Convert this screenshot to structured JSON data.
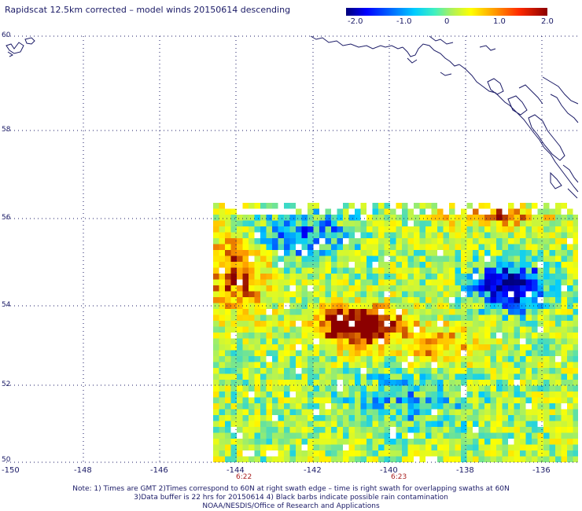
{
  "title": "Rapidscat 12.5km corrected – model winds 20150614 descending",
  "colorbar": {
    "ticks": [
      "-2.0",
      "-1.0",
      "0",
      "1.0",
      "2.0"
    ],
    "colors": [
      "#00007a",
      "#0000ff",
      "#00ccff",
      "#a8f060",
      "#ffff00",
      "#ff9900",
      "#8c0000"
    ]
  },
  "axes": {
    "lat_labels": [
      "60",
      "58",
      "56",
      "54",
      "52",
      "50"
    ],
    "lon_labels": [
      "-150",
      "-148",
      "-146",
      "-144",
      "-142",
      "-140",
      "-138",
      "-136"
    ]
  },
  "swath_times": [
    "6:22",
    "6:23"
  ],
  "notes": [
    "Note: 1) Times are GMT 2)Times correspond to 60N at right swath edge – time is right swath for overlapping swaths at 60N",
    "3)Data buffer is 22 hrs for 20150614 4) Black barbs indicate possible rain contamination",
    "NOAA/NESDIS/Office of Research and Applications"
  ],
  "colors": {
    "coastline": "#1a1a66",
    "grid": "#1a1a66",
    "label": "#1a1a66",
    "time": "#aa2222"
  }
}
